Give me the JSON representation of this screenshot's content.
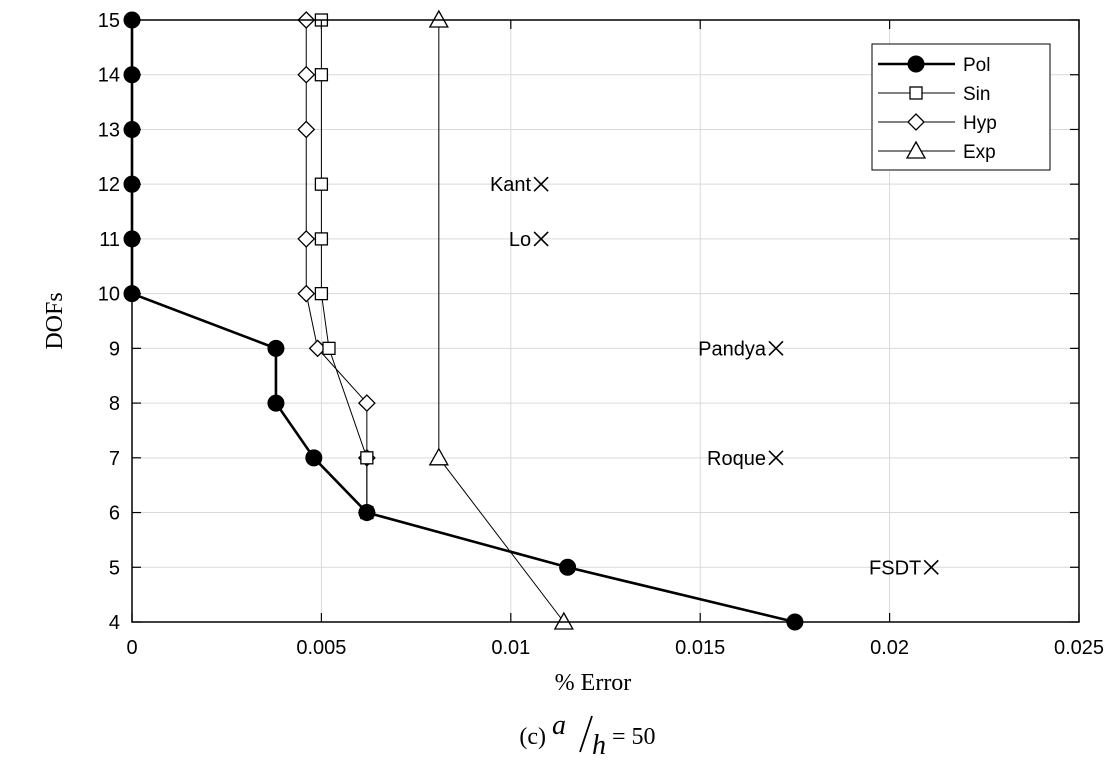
{
  "chart_data": {
    "type": "line",
    "xlabel": "% Error",
    "ylabel": "DOFs",
    "xlim": [
      0,
      0.025
    ],
    "ylim": [
      4,
      15
    ],
    "xticks": [
      "0",
      "0.005",
      "0.01",
      "0.015",
      "0.02",
      "0.025"
    ],
    "yticks": [
      "4",
      "5",
      "6",
      "7",
      "8",
      "9",
      "10",
      "11",
      "12",
      "13",
      "14",
      "15"
    ],
    "grid": true,
    "legend_position": "top-right",
    "series": [
      {
        "name": "Pol",
        "marker": "filled-circle",
        "points": [
          [
            0.0175,
            4
          ],
          [
            0.0115,
            5
          ],
          [
            0.0062,
            6
          ],
          [
            0.0048,
            7
          ],
          [
            0.0038,
            8
          ],
          [
            0.0038,
            9
          ],
          [
            0.0,
            10
          ],
          [
            0.0,
            11
          ],
          [
            0.0,
            12
          ],
          [
            0.0,
            13
          ],
          [
            0.0,
            14
          ],
          [
            0.0,
            15
          ]
        ]
      },
      {
        "name": "Sin",
        "marker": "square",
        "points": [
          [
            0.0062,
            6
          ],
          [
            0.0062,
            7
          ],
          [
            0.0052,
            9
          ],
          [
            0.005,
            10
          ],
          [
            0.005,
            11
          ],
          [
            0.005,
            12
          ],
          [
            0.005,
            14
          ],
          [
            0.005,
            15
          ]
        ]
      },
      {
        "name": "Hyp",
        "marker": "diamond",
        "points": [
          [
            0.0062,
            6
          ],
          [
            0.0062,
            7
          ],
          [
            0.0062,
            8
          ],
          [
            0.0049,
            9
          ],
          [
            0.0046,
            10
          ],
          [
            0.0046,
            11
          ],
          [
            0.0046,
            13
          ],
          [
            0.0046,
            14
          ],
          [
            0.0046,
            15
          ]
        ]
      },
      {
        "name": "Exp",
        "marker": "triangle",
        "points": [
          [
            0.0114,
            4
          ],
          [
            0.0081,
            7
          ],
          [
            0.0081,
            15
          ]
        ]
      }
    ],
    "annotations": [
      {
        "label": "Kant",
        "x": 0.0108,
        "y": 12
      },
      {
        "label": "Lo",
        "x": 0.0108,
        "y": 11
      },
      {
        "label": "Pandya",
        "x": 0.017,
        "y": 9
      },
      {
        "label": "Roque",
        "x": 0.017,
        "y": 7
      },
      {
        "label": "FSDT",
        "x": 0.0211,
        "y": 5
      }
    ]
  },
  "caption": {
    "prefix": "(c)",
    "numerator": "a",
    "denominator": "h",
    "suffix": "= 50"
  }
}
